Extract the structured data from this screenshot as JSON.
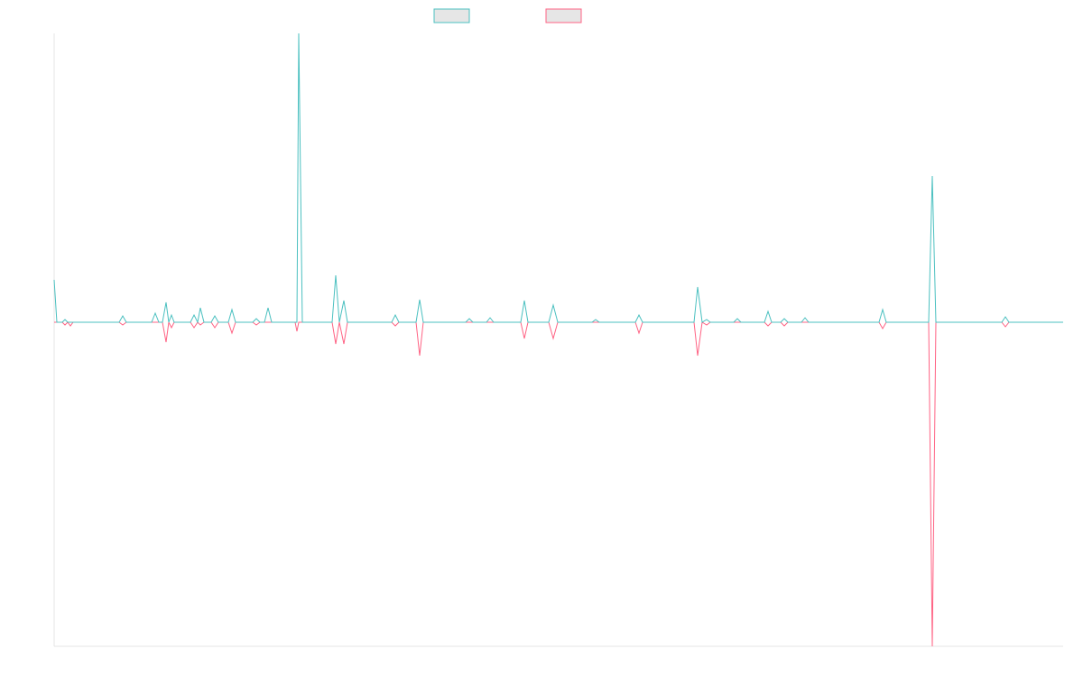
{
  "chart_data": {
    "type": "line",
    "x": [
      60,
      63,
      69,
      72,
      75,
      78,
      81,
      132,
      136,
      140,
      168,
      172,
      176,
      180,
      184,
      187,
      190,
      193,
      211,
      215,
      219,
      222,
      226,
      234,
      238,
      242,
      253,
      257,
      261,
      280,
      284,
      288,
      293,
      297,
      301,
      327,
      329,
      331,
      335,
      368,
      372,
      376,
      381,
      385,
      434,
      438,
      442,
      461,
      465,
      469,
      516,
      520,
      524,
      539,
      543,
      547,
      577,
      581,
      585,
      608,
      613,
      618,
      656,
      660,
      664,
      704,
      708,
      712,
      769,
      773,
      778,
      783,
      787,
      813,
      817,
      821,
      847,
      851,
      855,
      865,
      869,
      873,
      888,
      892,
      896,
      974,
      978,
      982,
      1029,
      1033,
      1037,
      1110,
      1114,
      1118,
      1178
    ],
    "series": [
      {
        "color": "#ff6384",
        "values": [
          0,
          0,
          0,
          -3,
          0,
          -4,
          0,
          0,
          -3,
          0,
          0,
          0,
          0,
          0,
          -22,
          0,
          -6,
          0,
          0,
          -6,
          0,
          -3,
          0,
          0,
          -6,
          0,
          0,
          -12,
          0,
          0,
          -3,
          0,
          0,
          0,
          0,
          0,
          -10,
          0,
          0,
          0,
          -24,
          0,
          -24,
          0,
          0,
          -4,
          0,
          0,
          -37,
          0,
          0,
          0,
          0,
          0,
          0,
          0,
          0,
          -18,
          0,
          0,
          -18,
          0,
          0,
          0,
          0,
          0,
          -12,
          0,
          0,
          -37,
          0,
          -3,
          0,
          0,
          0,
          0,
          0,
          -4,
          0,
          0,
          -4,
          0,
          0,
          0,
          0,
          0,
          -7,
          0,
          0,
          -359,
          0,
          0,
          -5,
          0,
          0
        ]
      },
      {
        "color": "#4bc0c0",
        "values": [
          47,
          0,
          0,
          3,
          0,
          0,
          0,
          0,
          7,
          0,
          0,
          10,
          0,
          0,
          22,
          0,
          8,
          0,
          0,
          8,
          0,
          16,
          0,
          0,
          7,
          0,
          0,
          14,
          0,
          0,
          4,
          0,
          0,
          16,
          0,
          0,
          0,
          320,
          0,
          0,
          52,
          0,
          24,
          0,
          0,
          8,
          0,
          0,
          25,
          0,
          0,
          4,
          0,
          0,
          5,
          0,
          0,
          24,
          0,
          0,
          19,
          0,
          0,
          3,
          0,
          0,
          8,
          0,
          0,
          39,
          0,
          3,
          0,
          0,
          4,
          0,
          0,
          12,
          0,
          0,
          4,
          0,
          0,
          5,
          0,
          0,
          14,
          0,
          0,
          162,
          0,
          0,
          6,
          0,
          0
        ]
      }
    ],
    "xlim": [
      60,
      1178
    ],
    "ylim": [
      -359,
      320
    ]
  }
}
